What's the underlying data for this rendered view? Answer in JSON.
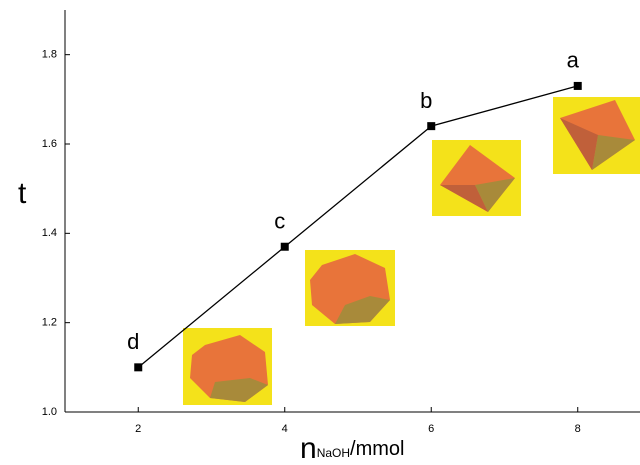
{
  "chart_data": {
    "type": "line",
    "x": [
      2,
      4,
      6,
      8
    ],
    "series": [
      {
        "color": "#000000",
        "values": [
          1.1,
          1.37,
          1.64,
          1.73
        ]
      }
    ],
    "point_labels": [
      "d",
      "c",
      "b",
      "a"
    ],
    "y_label": "t",
    "x_label": {
      "main": "n",
      "subscript": "NaOH",
      "unit": "/mmol"
    },
    "xlim": [
      1,
      8.85
    ],
    "xticks": [
      2,
      4,
      6,
      8
    ],
    "ylim": [
      1.0,
      1.9
    ],
    "yticks": [
      {
        "value": 1.0,
        "label": "1.0"
      },
      1.2,
      1.4,
      1.6,
      1.8
    ]
  }
}
